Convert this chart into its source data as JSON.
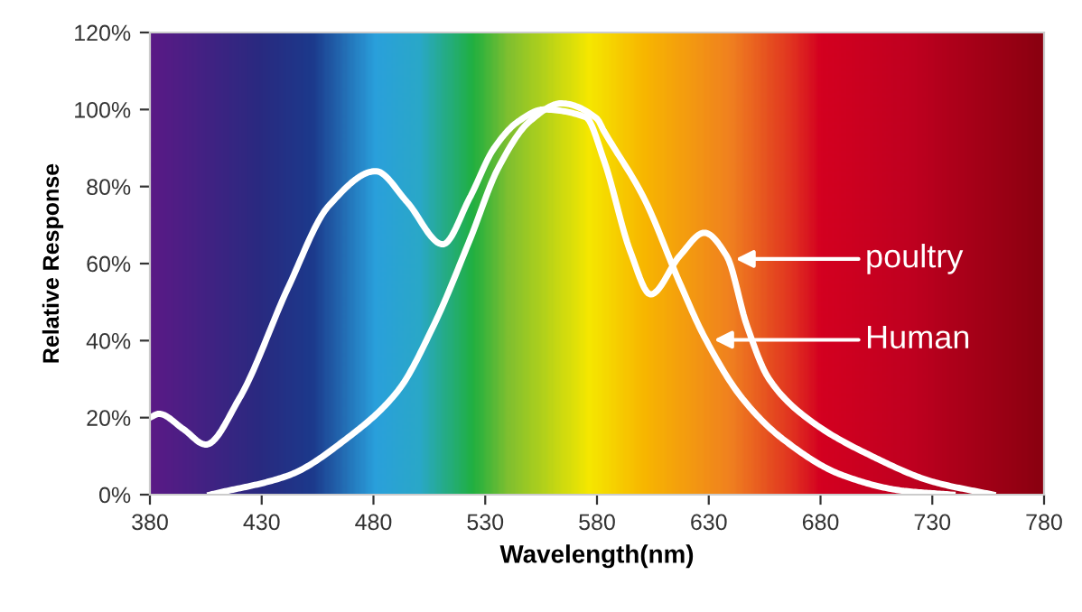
{
  "chart_data": {
    "type": "line",
    "xlabel": "Wavelength(nm)",
    "ylabel": "Relative Response",
    "xlim": [
      380,
      780
    ],
    "xticks": [
      380,
      430,
      480,
      530,
      580,
      630,
      680,
      730,
      780
    ],
    "ylim": [
      0,
      120
    ],
    "yticks": [
      {
        "value": 0,
        "label": "0%"
      },
      {
        "value": 20,
        "label": "20%"
      },
      {
        "value": 40,
        "label": "40%"
      },
      {
        "value": 60,
        "label": "60%"
      },
      {
        "value": 80,
        "label": "80%"
      },
      {
        "value": 100,
        "label": "100%"
      },
      {
        "value": 120,
        "label": "120%"
      }
    ],
    "grid": false,
    "legend": false,
    "marker": "none",
    "line_style": "solid",
    "series": [
      {
        "color": "#ffffff",
        "x": [
          380,
          384,
          395,
          405,
          420,
          442,
          460,
          481,
          495,
          511,
          523,
          534,
          545,
          556,
          575,
          583,
          595,
          604,
          617,
          628,
          638,
          647,
          657,
          676,
          703,
          730,
          757
        ],
        "values": [
          20,
          21,
          17,
          13,
          25,
          54,
          75,
          84,
          76,
          65,
          77,
          90,
          97,
          100,
          98,
          87,
          63,
          52,
          62,
          68,
          62,
          44,
          30,
          19,
          10,
          3.4,
          0
        ]
      },
      {
        "color": "#ffffff",
        "x": [
          407,
          442,
          469,
          491,
          507,
          523,
          536,
          550,
          564,
          580,
          583,
          601,
          617,
          628,
          645,
          663,
          690,
          717,
          739
        ],
        "values": [
          0,
          5,
          15,
          27,
          44,
          66,
          85,
          97,
          101.6,
          97.6,
          94.5,
          77,
          55,
          41,
          25,
          14.5,
          5,
          1,
          0
        ]
      }
    ],
    "annotations": [
      "poultry",
      "Human"
    ]
  }
}
